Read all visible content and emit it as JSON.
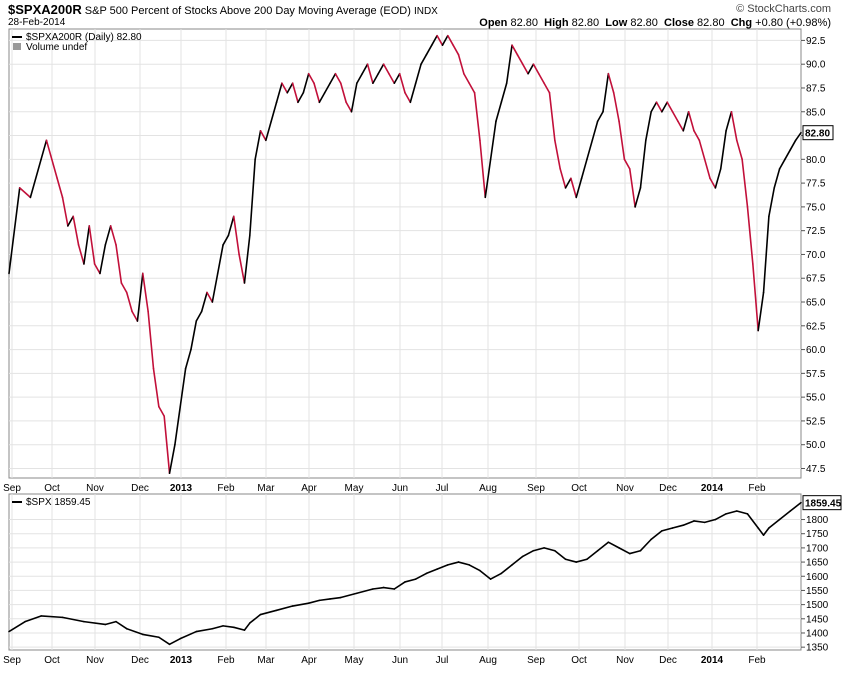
{
  "header": {
    "symbol": "$SPXA200R",
    "description": "S&P 500 Percent of Stocks Above 200 Day Moving Average (EOD)",
    "exchange": "INDX",
    "date": "28-Feb-2014",
    "brand": "© StockCharts.com",
    "ohlc": {
      "open_label": "Open",
      "open": "82.80",
      "high_label": "High",
      "high": "82.80",
      "low_label": "Low",
      "low": "82.80",
      "close_label": "Close",
      "close": "82.80",
      "chg_label": "Chg",
      "chg": "+0.80 (+0.98%)"
    }
  },
  "top_legend": {
    "series": "$SPXA200R (Daily) 82.80",
    "volume": "Volume undef"
  },
  "bottom_legend": {
    "series": "$SPX 1859.45"
  },
  "colors": {
    "up": "#000000",
    "down": "#c2103a",
    "grid": "#e3e3e3",
    "border": "#888888"
  },
  "chart_data": [
    {
      "type": "line",
      "title": "$SPXA200R",
      "ylim": [
        46.5,
        93.7
      ],
      "yticks": [
        47.5,
        50.0,
        52.5,
        55.0,
        57.5,
        60.0,
        62.5,
        65.0,
        67.5,
        70.0,
        72.5,
        75.0,
        77.5,
        80.0,
        82.5,
        85.0,
        87.5,
        90.0,
        92.5
      ],
      "last_value_label": "82.80",
      "x_labels": [
        "Sep",
        "Oct",
        "Nov",
        "Dec",
        "2013",
        "Feb",
        "Mar",
        "Apr",
        "May",
        "Jun",
        "Jul",
        "Aug",
        "Sep",
        "Oct",
        "Nov",
        "Dec",
        "2014",
        "Feb"
      ],
      "x_label_bold": [
        "2013",
        "2014"
      ],
      "points": [
        [
          0,
          68
        ],
        [
          2,
          77
        ],
        [
          4,
          76
        ],
        [
          6,
          80
        ],
        [
          7,
          82
        ],
        [
          8,
          80
        ],
        [
          9,
          78
        ],
        [
          10,
          76
        ],
        [
          11,
          73
        ],
        [
          12,
          74
        ],
        [
          13,
          71
        ],
        [
          14,
          69
        ],
        [
          15,
          73
        ],
        [
          16,
          69
        ],
        [
          17,
          68
        ],
        [
          18,
          71
        ],
        [
          19,
          73
        ],
        [
          20,
          71
        ],
        [
          21,
          67
        ],
        [
          22,
          66
        ],
        [
          23,
          64
        ],
        [
          24,
          63
        ],
        [
          25,
          68
        ],
        [
          26,
          64
        ],
        [
          27,
          58
        ],
        [
          28,
          54
        ],
        [
          29,
          53
        ],
        [
          30,
          47
        ],
        [
          31,
          50
        ],
        [
          32,
          54
        ],
        [
          33,
          58
        ],
        [
          34,
          60
        ],
        [
          35,
          63
        ],
        [
          36,
          64
        ],
        [
          37,
          66
        ],
        [
          38,
          65
        ],
        [
          39,
          68
        ],
        [
          40,
          71
        ],
        [
          41,
          72
        ],
        [
          42,
          74
        ],
        [
          43,
          70
        ],
        [
          44,
          67
        ],
        [
          45,
          72
        ],
        [
          46,
          80
        ],
        [
          47,
          83
        ],
        [
          48,
          82
        ],
        [
          49,
          84
        ],
        [
          50,
          86
        ],
        [
          51,
          88
        ],
        [
          52,
          87
        ],
        [
          53,
          88
        ],
        [
          54,
          86
        ],
        [
          55,
          87
        ],
        [
          56,
          89
        ],
        [
          57,
          88
        ],
        [
          58,
          86
        ],
        [
          59,
          87
        ],
        [
          60,
          88
        ],
        [
          61,
          89
        ],
        [
          62,
          88
        ],
        [
          63,
          86
        ],
        [
          64,
          85
        ],
        [
          65,
          88
        ],
        [
          66,
          89
        ],
        [
          67,
          90
        ],
        [
          68,
          88
        ],
        [
          69,
          89
        ],
        [
          70,
          90
        ],
        [
          71,
          89
        ],
        [
          72,
          88
        ],
        [
          73,
          89
        ],
        [
          74,
          87
        ],
        [
          75,
          86
        ],
        [
          76,
          88
        ],
        [
          77,
          90
        ],
        [
          78,
          91
        ],
        [
          79,
          92
        ],
        [
          80,
          93
        ],
        [
          81,
          92
        ],
        [
          82,
          93
        ],
        [
          83,
          92
        ],
        [
          84,
          91
        ],
        [
          85,
          89
        ],
        [
          86,
          88
        ],
        [
          87,
          87
        ],
        [
          88,
          82
        ],
        [
          89,
          76
        ],
        [
          90,
          80
        ],
        [
          91,
          84
        ],
        [
          92,
          86
        ],
        [
          93,
          88
        ],
        [
          94,
          92
        ],
        [
          95,
          91
        ],
        [
          96,
          90
        ],
        [
          97,
          89
        ],
        [
          98,
          90
        ],
        [
          99,
          89
        ],
        [
          100,
          88
        ],
        [
          101,
          87
        ],
        [
          102,
          82
        ],
        [
          103,
          79
        ],
        [
          104,
          77
        ],
        [
          105,
          78
        ],
        [
          106,
          76
        ],
        [
          107,
          78
        ],
        [
          108,
          80
        ],
        [
          109,
          82
        ],
        [
          110,
          84
        ],
        [
          111,
          85
        ],
        [
          112,
          89
        ],
        [
          113,
          87
        ],
        [
          114,
          84
        ],
        [
          115,
          80
        ],
        [
          116,
          79
        ],
        [
          117,
          75
        ],
        [
          118,
          77
        ],
        [
          119,
          82
        ],
        [
          120,
          85
        ],
        [
          121,
          86
        ],
        [
          122,
          85
        ],
        [
          123,
          86
        ],
        [
          124,
          85
        ],
        [
          125,
          84
        ],
        [
          126,
          83
        ],
        [
          127,
          85
        ],
        [
          128,
          83
        ],
        [
          129,
          82
        ],
        [
          130,
          80
        ],
        [
          131,
          78
        ],
        [
          132,
          77
        ],
        [
          133,
          79
        ],
        [
          134,
          83
        ],
        [
          135,
          85
        ],
        [
          136,
          82
        ],
        [
          137,
          80
        ],
        [
          138,
          75
        ],
        [
          139,
          69
        ],
        [
          140,
          62
        ],
        [
          141,
          66
        ],
        [
          142,
          74
        ],
        [
          143,
          77
        ],
        [
          144,
          79
        ],
        [
          145,
          80
        ],
        [
          146,
          81
        ],
        [
          147,
          82
        ],
        [
          148,
          82.8
        ]
      ]
    },
    {
      "type": "line",
      "title": "$SPX",
      "ylim": [
        1340,
        1890
      ],
      "yticks": [
        1350,
        1400,
        1450,
        1500,
        1550,
        1600,
        1650,
        1700,
        1750,
        1800
      ],
      "last_value_label": "1859.45",
      "x_labels": [
        "Sep",
        "Oct",
        "Nov",
        "Dec",
        "2013",
        "Feb",
        "Mar",
        "Apr",
        "May",
        "Jun",
        "Jul",
        "Aug",
        "Sep",
        "Oct",
        "Nov",
        "Dec",
        "2014",
        "Feb"
      ],
      "x_label_bold": [
        "2013",
        "2014"
      ],
      "points": [
        [
          0,
          1405
        ],
        [
          3,
          1440
        ],
        [
          6,
          1460
        ],
        [
          10,
          1455
        ],
        [
          14,
          1440
        ],
        [
          18,
          1430
        ],
        [
          20,
          1440
        ],
        [
          22,
          1415
        ],
        [
          25,
          1395
        ],
        [
          28,
          1385
        ],
        [
          30,
          1360
        ],
        [
          32,
          1380
        ],
        [
          35,
          1405
        ],
        [
          38,
          1415
        ],
        [
          40,
          1425
        ],
        [
          42,
          1420
        ],
        [
          44,
          1410
        ],
        [
          45,
          1435
        ],
        [
          47,
          1465
        ],
        [
          50,
          1480
        ],
        [
          53,
          1495
        ],
        [
          56,
          1505
        ],
        [
          58,
          1515
        ],
        [
          60,
          1520
        ],
        [
          62,
          1525
        ],
        [
          65,
          1540
        ],
        [
          68,
          1555
        ],
        [
          70,
          1560
        ],
        [
          72,
          1555
        ],
        [
          74,
          1580
        ],
        [
          76,
          1590
        ],
        [
          78,
          1610
        ],
        [
          80,
          1625
        ],
        [
          82,
          1640
        ],
        [
          84,
          1650
        ],
        [
          86,
          1640
        ],
        [
          88,
          1620
        ],
        [
          90,
          1590
        ],
        [
          92,
          1610
        ],
        [
          94,
          1640
        ],
        [
          96,
          1670
        ],
        [
          98,
          1690
        ],
        [
          100,
          1700
        ],
        [
          102,
          1690
        ],
        [
          104,
          1660
        ],
        [
          106,
          1650
        ],
        [
          108,
          1660
        ],
        [
          110,
          1690
        ],
        [
          112,
          1720
        ],
        [
          114,
          1700
        ],
        [
          116,
          1680
        ],
        [
          118,
          1690
        ],
        [
          120,
          1730
        ],
        [
          122,
          1760
        ],
        [
          124,
          1770
        ],
        [
          126,
          1780
        ],
        [
          128,
          1795
        ],
        [
          130,
          1790
        ],
        [
          132,
          1800
        ],
        [
          134,
          1820
        ],
        [
          136,
          1830
        ],
        [
          138,
          1820
        ],
        [
          140,
          1770
        ],
        [
          141,
          1745
        ],
        [
          142,
          1770
        ],
        [
          144,
          1800
        ],
        [
          146,
          1830
        ],
        [
          148,
          1859.45
        ]
      ]
    }
  ]
}
